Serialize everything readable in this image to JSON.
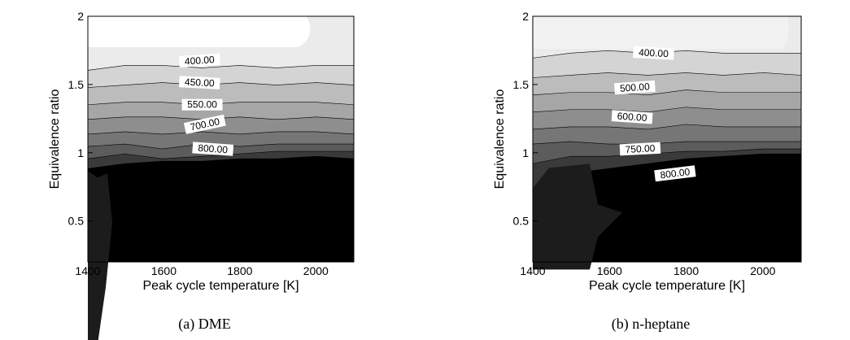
{
  "chart_data": [
    {
      "type": "contour",
      "caption": "(a) DME",
      "xlabel": "Peak cycle temperature [K]",
      "ylabel": "Equivalence ratio",
      "xlim": [
        1400,
        2100
      ],
      "ylim": [
        0.2,
        2
      ],
      "xticks": [
        1400,
        1600,
        1800,
        2000
      ],
      "yticks": [
        0.5,
        1,
        1.5,
        2
      ],
      "contour_labels": [
        {
          "value": 400,
          "label": "400.00"
        },
        {
          "value": 450,
          "label": "450.00"
        },
        {
          "value": 550,
          "label": "550.00"
        },
        {
          "value": 700,
          "label": "700.00"
        },
        {
          "value": 800,
          "label": "800.00"
        }
      ]
    },
    {
      "type": "contour",
      "caption": "(b) n-heptane",
      "xlabel": "Peak cycle temperature [K]",
      "ylabel": "Equivalence ratio",
      "xlim": [
        1400,
        2100
      ],
      "ylim": [
        0.2,
        2
      ],
      "xticks": [
        1400,
        1600,
        1800,
        2000
      ],
      "yticks": [
        0.5,
        1,
        1.5,
        2
      ],
      "contour_labels": [
        {
          "value": 400,
          "label": "400.00"
        },
        {
          "value": 500,
          "label": "500.00"
        },
        {
          "value": 600,
          "label": "600.00"
        },
        {
          "value": 750,
          "label": "750.00"
        },
        {
          "value": 800,
          "label": "800.00"
        }
      ]
    }
  ]
}
